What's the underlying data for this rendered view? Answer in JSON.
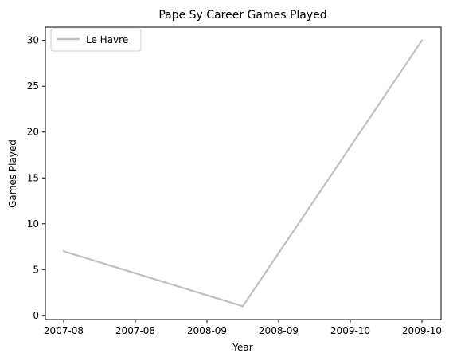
{
  "chart_data": {
    "type": "line",
    "title": "Pape Sy Career Games Played",
    "xlabel": "Year",
    "ylabel": "Games Played",
    "x": [
      "2007-08",
      "2008-09",
      "2009-10"
    ],
    "x_tick_labels": [
      "2007-08",
      "2007-08",
      "2008-09",
      "2008-09",
      "2009-10",
      "2009-10"
    ],
    "series": [
      {
        "name": "Le Havre",
        "values": [
          7,
          1,
          30
        ],
        "color": "#bfbfbf"
      }
    ],
    "y_ticks": [
      0,
      5,
      10,
      15,
      20,
      25,
      30
    ],
    "ylim": [
      -0.45,
      31.45
    ],
    "legend_position": "upper left",
    "grid": false
  }
}
